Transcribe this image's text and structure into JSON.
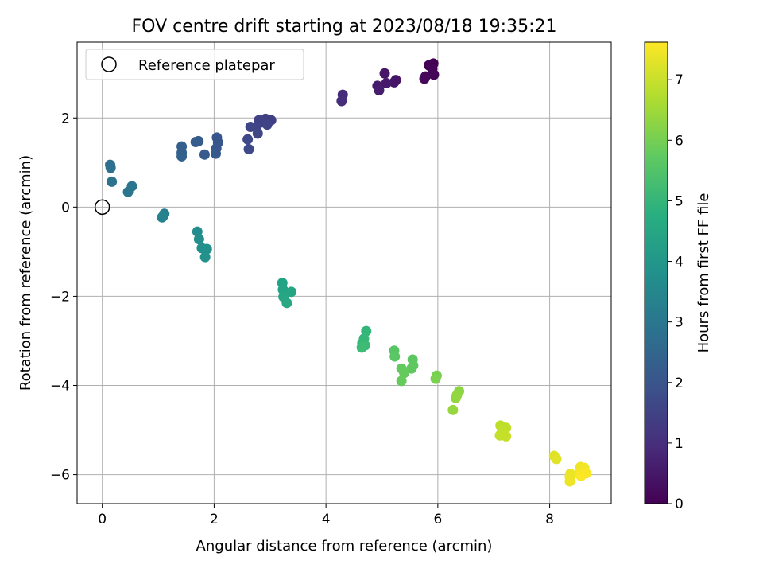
{
  "chart_data": {
    "type": "scatter",
    "title": "FOV centre drift starting at 2023/08/18 19:35:21",
    "xlabel": "Angular distance from reference (arcmin)",
    "ylabel": "Rotation from reference (arcmin)",
    "xlim": [
      -0.45,
      9.1
    ],
    "ylim": [
      -6.65,
      3.7
    ],
    "x_ticks": [
      0,
      2,
      4,
      6,
      8
    ],
    "y_ticks": [
      -6,
      -4,
      -2,
      0,
      2
    ],
    "grid": true,
    "legend": {
      "placement": "top-left",
      "entries": [
        "Reference platepar"
      ]
    },
    "reference_point": {
      "name": "Reference platepar",
      "x": 0,
      "y": 0
    },
    "colorbar": {
      "label": "Hours from first FF file",
      "range": [
        0,
        7.62
      ],
      "ticks": [
        0,
        1,
        2,
        3,
        4,
        5,
        6,
        7
      ],
      "colormap": "viridis"
    },
    "points": [
      {
        "x": 5.92,
        "y": 3.22,
        "c": 0.0
      },
      {
        "x": 5.84,
        "y": 3.18,
        "c": 0.03
      },
      {
        "x": 5.9,
        "y": 3.1,
        "c": 0.06
      },
      {
        "x": 5.93,
        "y": 2.97,
        "c": 0.09
      },
      {
        "x": 5.78,
        "y": 2.93,
        "c": 0.12
      },
      {
        "x": 5.76,
        "y": 2.88,
        "c": 0.15
      },
      {
        "x": 5.25,
        "y": 2.85,
        "c": 0.4
      },
      {
        "x": 5.22,
        "y": 2.8,
        "c": 0.44
      },
      {
        "x": 5.05,
        "y": 3.0,
        "c": 0.48
      },
      {
        "x": 5.08,
        "y": 2.78,
        "c": 0.52
      },
      {
        "x": 4.92,
        "y": 2.72,
        "c": 0.56
      },
      {
        "x": 4.95,
        "y": 2.62,
        "c": 0.6
      },
      {
        "x": 4.3,
        "y": 2.52,
        "c": 0.95
      },
      {
        "x": 4.28,
        "y": 2.38,
        "c": 1.0
      },
      {
        "x": 3.02,
        "y": 1.95,
        "c": 1.4
      },
      {
        "x": 2.92,
        "y": 1.98,
        "c": 1.43
      },
      {
        "x": 2.85,
        "y": 1.9,
        "c": 1.46
      },
      {
        "x": 2.8,
        "y": 1.95,
        "c": 1.49
      },
      {
        "x": 2.95,
        "y": 1.85,
        "c": 1.52
      },
      {
        "x": 2.75,
        "y": 1.8,
        "c": 1.55
      },
      {
        "x": 2.65,
        "y": 1.8,
        "c": 1.58
      },
      {
        "x": 2.78,
        "y": 1.65,
        "c": 1.61
      },
      {
        "x": 2.6,
        "y": 1.52,
        "c": 1.64
      },
      {
        "x": 2.62,
        "y": 1.3,
        "c": 1.67
      },
      {
        "x": 2.05,
        "y": 1.56,
        "c": 2.0
      },
      {
        "x": 2.07,
        "y": 1.45,
        "c": 2.04
      },
      {
        "x": 2.04,
        "y": 1.32,
        "c": 2.08
      },
      {
        "x": 2.03,
        "y": 1.2,
        "c": 2.12
      },
      {
        "x": 1.83,
        "y": 1.18,
        "c": 2.16
      },
      {
        "x": 1.72,
        "y": 1.48,
        "c": 2.2
      },
      {
        "x": 1.67,
        "y": 1.46,
        "c": 2.24
      },
      {
        "x": 1.42,
        "y": 1.36,
        "c": 2.28
      },
      {
        "x": 1.42,
        "y": 1.22,
        "c": 2.32
      },
      {
        "x": 1.42,
        "y": 1.14,
        "c": 2.36
      },
      {
        "x": 0.14,
        "y": 0.95,
        "c": 2.8
      },
      {
        "x": 0.15,
        "y": 0.88,
        "c": 2.84
      },
      {
        "x": 0.17,
        "y": 0.57,
        "c": 2.88
      },
      {
        "x": 0.53,
        "y": 0.47,
        "c": 2.95
      },
      {
        "x": 0.46,
        "y": 0.34,
        "c": 3.0
      },
      {
        "x": 1.11,
        "y": -0.15,
        "c": 3.3
      },
      {
        "x": 1.09,
        "y": -0.2,
        "c": 3.34
      },
      {
        "x": 1.07,
        "y": -0.23,
        "c": 3.38
      },
      {
        "x": 1.7,
        "y": -0.55,
        "c": 3.7
      },
      {
        "x": 1.73,
        "y": -0.72,
        "c": 3.74
      },
      {
        "x": 1.78,
        "y": -0.92,
        "c": 3.78
      },
      {
        "x": 1.87,
        "y": -0.94,
        "c": 3.82
      },
      {
        "x": 1.84,
        "y": -1.12,
        "c": 3.86
      },
      {
        "x": 3.22,
        "y": -1.7,
        "c": 4.4
      },
      {
        "x": 3.23,
        "y": -1.85,
        "c": 4.44
      },
      {
        "x": 3.38,
        "y": -1.9,
        "c": 4.48
      },
      {
        "x": 3.24,
        "y": -2.01,
        "c": 4.52
      },
      {
        "x": 3.3,
        "y": -2.15,
        "c": 4.56
      },
      {
        "x": 4.72,
        "y": -2.78,
        "c": 5.05
      },
      {
        "x": 4.68,
        "y": -2.95,
        "c": 5.09
      },
      {
        "x": 4.65,
        "y": -3.05,
        "c": 5.13
      },
      {
        "x": 4.7,
        "y": -3.1,
        "c": 5.17
      },
      {
        "x": 4.64,
        "y": -3.15,
        "c": 5.21
      },
      {
        "x": 5.22,
        "y": -3.22,
        "c": 5.6
      },
      {
        "x": 5.23,
        "y": -3.35,
        "c": 5.63
      },
      {
        "x": 5.55,
        "y": -3.42,
        "c": 5.66
      },
      {
        "x": 5.56,
        "y": -3.55,
        "c": 5.69
      },
      {
        "x": 5.53,
        "y": -3.62,
        "c": 5.72
      },
      {
        "x": 5.35,
        "y": -3.62,
        "c": 5.75
      },
      {
        "x": 5.4,
        "y": -3.72,
        "c": 5.78
      },
      {
        "x": 5.35,
        "y": -3.9,
        "c": 5.81
      },
      {
        "x": 5.98,
        "y": -3.78,
        "c": 6.05
      },
      {
        "x": 5.96,
        "y": -3.85,
        "c": 6.08
      },
      {
        "x": 6.38,
        "y": -4.13,
        "c": 6.3
      },
      {
        "x": 6.34,
        "y": -4.22,
        "c": 6.33
      },
      {
        "x": 6.32,
        "y": -4.28,
        "c": 6.36
      },
      {
        "x": 6.27,
        "y": -4.55,
        "c": 6.4
      },
      {
        "x": 7.12,
        "y": -4.9,
        "c": 6.85
      },
      {
        "x": 7.22,
        "y": -4.95,
        "c": 6.88
      },
      {
        "x": 7.15,
        "y": -5.0,
        "c": 6.91
      },
      {
        "x": 7.11,
        "y": -5.12,
        "c": 6.94
      },
      {
        "x": 7.22,
        "y": -5.14,
        "c": 6.97
      },
      {
        "x": 8.08,
        "y": -5.58,
        "c": 7.25
      },
      {
        "x": 8.12,
        "y": -5.65,
        "c": 7.28
      },
      {
        "x": 8.55,
        "y": -5.83,
        "c": 7.45
      },
      {
        "x": 8.62,
        "y": -5.85,
        "c": 7.48
      },
      {
        "x": 8.58,
        "y": -5.93,
        "c": 7.51
      },
      {
        "x": 8.52,
        "y": -5.98,
        "c": 7.54
      },
      {
        "x": 8.65,
        "y": -5.97,
        "c": 7.57
      },
      {
        "x": 8.56,
        "y": -6.03,
        "c": 7.6
      },
      {
        "x": 8.37,
        "y": -5.98,
        "c": 7.4
      },
      {
        "x": 8.36,
        "y": -6.05,
        "c": 7.42
      },
      {
        "x": 8.36,
        "y": -6.15,
        "c": 7.44
      }
    ]
  }
}
